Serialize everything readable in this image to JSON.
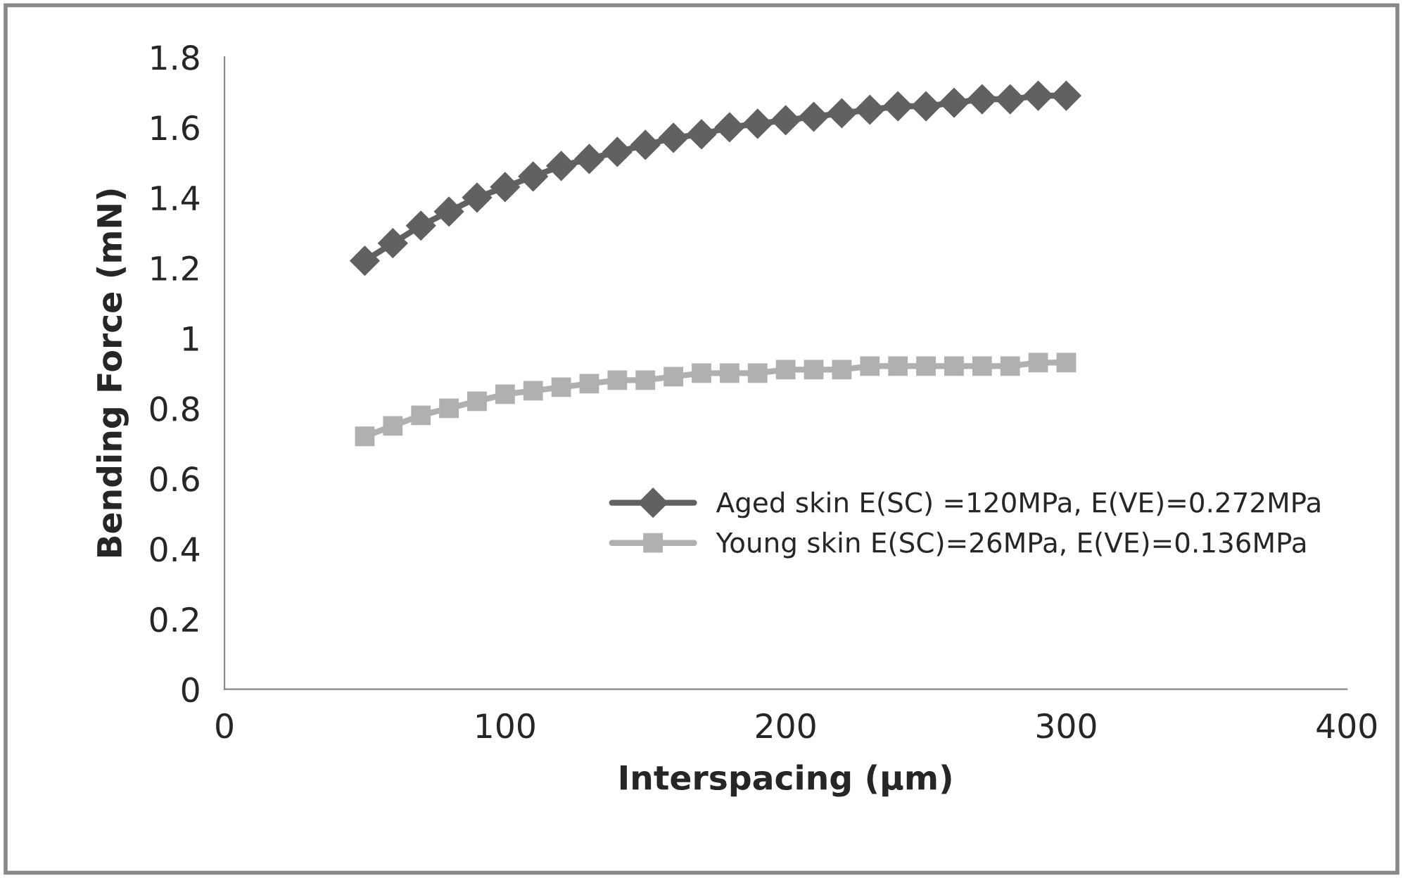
{
  "chart_data": {
    "type": "line",
    "xlabel": "Interspacing (µm)",
    "ylabel": "Bending Force (mN)",
    "x": [
      50,
      60,
      70,
      80,
      90,
      100,
      110,
      120,
      130,
      140,
      150,
      160,
      170,
      180,
      190,
      200,
      210,
      220,
      230,
      240,
      250,
      260,
      270,
      280,
      290,
      300
    ],
    "xlim": [
      0,
      400
    ],
    "xticks": [
      0,
      100,
      200,
      300,
      400
    ],
    "ylim": [
      0,
      1.8
    ],
    "yticks": [
      0,
      0.2,
      0.4,
      0.6,
      0.8,
      1,
      1.2,
      1.4,
      1.6,
      1.8
    ],
    "grid": false,
    "legend": "right",
    "series": [
      {
        "name": "Aged skin E(SC) =120MPa, E(VE)=0.272MPa",
        "color": "#616161",
        "marker": "diamond",
        "values": [
          1.22,
          1.27,
          1.32,
          1.36,
          1.4,
          1.43,
          1.46,
          1.49,
          1.51,
          1.53,
          1.55,
          1.57,
          1.58,
          1.6,
          1.61,
          1.62,
          1.63,
          1.64,
          1.65,
          1.66,
          1.66,
          1.67,
          1.68,
          1.68,
          1.69,
          1.69
        ]
      },
      {
        "name": "Young skin E(SC)=26MPa, E(VE)=0.136MPa",
        "color": "#b0b0b0",
        "marker": "square",
        "values": [
          0.72,
          0.75,
          0.78,
          0.8,
          0.82,
          0.84,
          0.85,
          0.86,
          0.87,
          0.88,
          0.88,
          0.89,
          0.9,
          0.9,
          0.9,
          0.91,
          0.91,
          0.91,
          0.92,
          0.92,
          0.92,
          0.92,
          0.92,
          0.92,
          0.93,
          0.93
        ]
      }
    ]
  }
}
